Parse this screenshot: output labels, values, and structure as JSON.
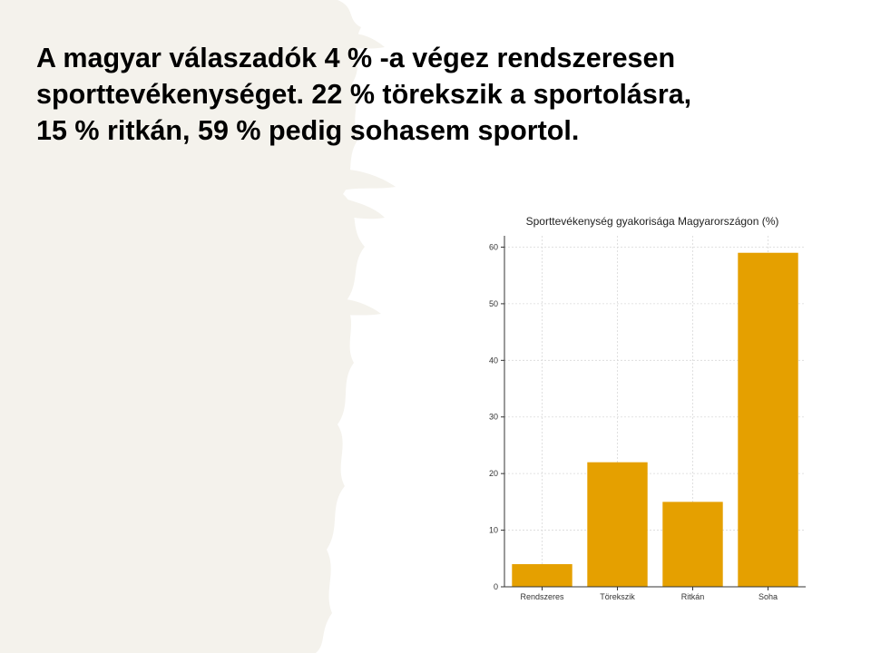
{
  "slide": {
    "heading": "A magyar válaszadók 4 % -a végez rendszeresen\nsporttevékenységet. 22 % törekszik a sportolásra,\n15 % ritkán,  59 % pedig sohasem sportol."
  },
  "colors": {
    "bar": "#e5a000",
    "background_texture": "#f4f2ec",
    "grid": "#d9d9d9"
  },
  "chart_data": {
    "type": "bar",
    "title": "Sporttevékenység gyakorisága Magyarországon (%)",
    "categories": [
      "Rendszeres",
      "Törekszik",
      "Ritkán",
      "Soha"
    ],
    "values": [
      4,
      22,
      15,
      59
    ],
    "yticks": [
      0,
      10,
      20,
      30,
      40,
      50,
      60
    ],
    "ylim": [
      0,
      62
    ],
    "xlabel": "",
    "ylabel": "",
    "grid": true
  }
}
